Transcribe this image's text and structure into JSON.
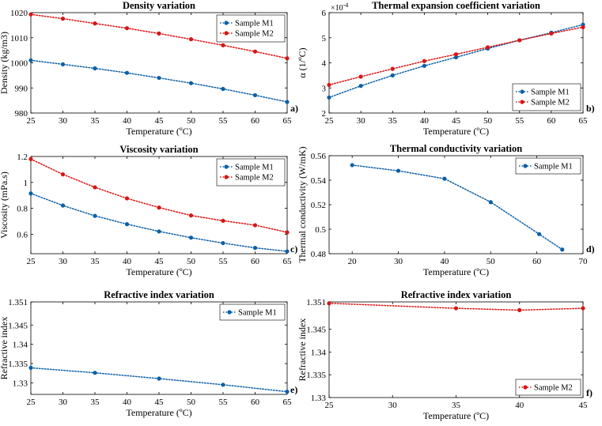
{
  "figure": {
    "colors": {
      "M1": "#0b5fa8",
      "M2": "#d81414"
    }
  },
  "chart_data": [
    {
      "id": "a",
      "type": "line",
      "title": "Density variation",
      "panel_label": "a)",
      "xlabel": "Temperature (ºC)",
      "ylabel": "Density (kg/m3)",
      "xlim": [
        25,
        65
      ],
      "ylim": [
        980,
        1020
      ],
      "xticks": [
        25,
        30,
        35,
        40,
        45,
        50,
        55,
        60,
        65
      ],
      "yticks": [
        980,
        990,
        1000,
        1010,
        1020
      ],
      "ytick_labels": [
        "980",
        "990",
        "1000",
        "1010",
        "1020"
      ],
      "legend_position": "top-right",
      "grid": false,
      "series": [
        {
          "name": "Sample M1",
          "color": "#0b5fa8",
          "x": [
            25,
            30,
            35,
            40,
            45,
            50,
            55,
            60,
            65
          ],
          "y": [
            1001,
            999.4,
            997.8,
            996,
            994,
            991.9,
            989.6,
            987.1,
            984.4
          ]
        },
        {
          "name": "Sample M2",
          "color": "#d81414",
          "x": [
            25,
            30,
            35,
            40,
            45,
            50,
            55,
            60,
            65
          ],
          "y": [
            1019.3,
            1017.6,
            1015.7,
            1013.8,
            1011.7,
            1009.4,
            1007,
            1004.5,
            1001.8
          ]
        }
      ]
    },
    {
      "id": "b",
      "type": "line",
      "title": "Thermal expansion coefficient variation",
      "panel_label": "b)",
      "xlabel": "Temperature (ºC)",
      "ylabel": "α (1/ºC)",
      "exponent_label": "×10",
      "exponent_value": "-4",
      "xlim": [
        25,
        65
      ],
      "ylim": [
        2,
        6
      ],
      "xticks": [
        25,
        30,
        35,
        40,
        45,
        50,
        55,
        60,
        65
      ],
      "yticks": [
        2,
        3,
        4,
        5,
        6
      ],
      "ytick_labels": [
        "2",
        "3",
        "4",
        "5",
        "6"
      ],
      "legend_position": "bottom-right",
      "grid": false,
      "series": [
        {
          "name": "Sample M1",
          "color": "#0b5fa8",
          "x": [
            25,
            30,
            35,
            40,
            45,
            50,
            55,
            60,
            65
          ],
          "y": [
            2.62,
            3.08,
            3.5,
            3.88,
            4.22,
            4.57,
            4.9,
            5.2,
            5.52
          ]
        },
        {
          "name": "Sample M2",
          "color": "#d81414",
          "x": [
            25,
            30,
            35,
            40,
            45,
            50,
            55,
            60,
            65
          ],
          "y": [
            3.12,
            3.45,
            3.76,
            4.07,
            4.34,
            4.62,
            4.9,
            5.17,
            5.42
          ]
        }
      ]
    },
    {
      "id": "c",
      "type": "line",
      "title": "Viscosity variation",
      "panel_label": "c)",
      "xlabel": "Temperature (ºC)",
      "ylabel": "Viscosity (mPa.s)",
      "xlim": [
        25,
        65
      ],
      "ylim": [
        0.45,
        1.2
      ],
      "xticks": [
        25,
        30,
        35,
        40,
        45,
        50,
        55,
        60,
        65
      ],
      "yticks": [
        0.6,
        0.8,
        1,
        1.2
      ],
      "ytick_labels": [
        "0.6",
        "0.8",
        "1",
        "1.2"
      ],
      "legend_position": "top-right",
      "grid": false,
      "series": [
        {
          "name": "Sample M1",
          "color": "#0b5fa8",
          "x": [
            25,
            30,
            35,
            40,
            45,
            50,
            55,
            60,
            65
          ],
          "y": [
            0.915,
            0.822,
            0.742,
            0.678,
            0.622,
            0.574,
            0.532,
            0.495,
            0.468
          ]
        },
        {
          "name": "Sample M2",
          "color": "#d81414",
          "x": [
            25,
            30,
            35,
            40,
            45,
            50,
            55,
            60,
            65
          ],
          "y": [
            1.18,
            1.062,
            0.962,
            0.877,
            0.806,
            0.745,
            0.704,
            0.67,
            0.615
          ]
        }
      ]
    },
    {
      "id": "d",
      "type": "line",
      "title": "Thermal conductivity variation",
      "panel_label": "d)",
      "xlabel": "Temperature (ºC)",
      "ylabel": "Thermal conductivity (W/mK)",
      "xlim": [
        15,
        70
      ],
      "ylim": [
        0.48,
        0.56
      ],
      "xticks": [
        20,
        30,
        40,
        50,
        60,
        70
      ],
      "yticks": [
        0.48,
        0.5,
        0.52,
        0.54,
        0.56
      ],
      "ytick_labels": [
        "0.48",
        "0.5",
        "0.52",
        "0.54",
        "0.56"
      ],
      "legend_position": "top-right",
      "grid": false,
      "series": [
        {
          "name": "Sample M1",
          "color": "#0b5fa8",
          "x": [
            20,
            30,
            40,
            50,
            60.5,
            65.5
          ],
          "y": [
            0.5523,
            0.5477,
            0.5412,
            0.5221,
            0.496,
            0.4834
          ]
        }
      ]
    },
    {
      "id": "e",
      "type": "line",
      "title": "Refractive index variation",
      "panel_label": "e)",
      "xlabel": "Temperature (ºC)",
      "ylabel": "Refractive index",
      "xlim": [
        25,
        65
      ],
      "ylim": [
        1.327,
        1.351
      ],
      "xticks": [
        25,
        30,
        35,
        40,
        45,
        50,
        55,
        60,
        65
      ],
      "yticks": [
        1.33,
        1.335,
        1.34,
        1.345,
        1.351
      ],
      "ytick_labels": [
        "1.33",
        "1.335",
        "1.34",
        "1.345",
        "1.351"
      ],
      "legend_position": "top-right",
      "grid": false,
      "series": [
        {
          "name": "Sample M1",
          "color": "#0b5fa8",
          "x": [
            25,
            35,
            45,
            55,
            65
          ],
          "y": [
            1.3339,
            1.3326,
            1.3311,
            1.3295,
            1.3277
          ]
        }
      ]
    },
    {
      "id": "f",
      "type": "line",
      "title": "Refractive index variation",
      "panel_label": "f)",
      "xlabel": "Temperature (ºC)",
      "ylabel": "Refractive index",
      "xlim": [
        25,
        45
      ],
      "ylim": [
        1.33,
        1.351
      ],
      "xticks": [
        25,
        30,
        35,
        40,
        45
      ],
      "yticks": [
        1.33,
        1.335,
        1.34,
        1.345,
        1.351
      ],
      "ytick_labels": [
        "1.33",
        "1.335",
        "1.34",
        "1.345",
        "1.351"
      ],
      "legend_position": "bottom-right",
      "grid": false,
      "series": [
        {
          "name": "Sample M2",
          "color": "#d81414",
          "x": [
            25,
            35,
            40,
            45
          ],
          "y": [
            1.3507,
            1.3496,
            1.3492,
            1.3496
          ]
        }
      ]
    }
  ]
}
